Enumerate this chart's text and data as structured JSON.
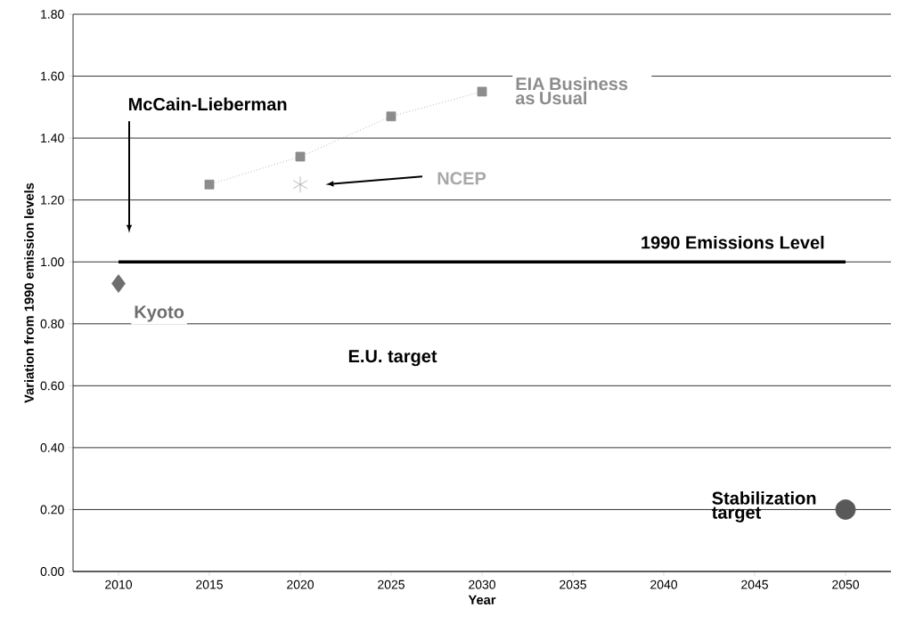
{
  "chart_data": {
    "type": "scatter",
    "xlabel": "Year",
    "ylabel": "Variation from 1990 emission levels",
    "xlim": [
      2007.5,
      2052.5
    ],
    "xticks": [
      2010,
      2015,
      2020,
      2025,
      2030,
      2035,
      2040,
      2045,
      2050
    ],
    "ylim": [
      0,
      1.8
    ],
    "yticks": [
      {
        "value": 0,
        "label": "0.00"
      },
      {
        "value": 0.2,
        "label": "0.20"
      },
      {
        "value": 0.4,
        "label": "0.40"
      },
      {
        "value": 0.6,
        "label": "0.60"
      },
      {
        "value": 0.8,
        "label": "0.80"
      },
      {
        "value": 1.0,
        "label": "1.00"
      },
      {
        "value": 1.2,
        "label": "1.20"
      },
      {
        "value": 1.4,
        "label": "1.40"
      },
      {
        "value": 1.6,
        "label": "1.60"
      },
      {
        "value": 1.8,
        "label": "1.80"
      }
    ],
    "grid": "y",
    "series": [
      {
        "name": "EIA Business as Usual",
        "type": "line",
        "marker": "square",
        "line_style": "dotted",
        "color": "#8c8c8c",
        "x": [
          2015,
          2020,
          2025,
          2030
        ],
        "values": [
          1.25,
          1.34,
          1.47,
          1.55
        ]
      },
      {
        "name": "NCEP",
        "marker": "cross",
        "color": "#a8a8a8",
        "x": [
          2020
        ],
        "values": [
          1.25
        ]
      },
      {
        "name": "1990 Emissions Level",
        "type": "line",
        "marker": "none",
        "line_style": "solid",
        "color": "#000000",
        "x": [
          2010,
          2050
        ],
        "values": [
          1.0,
          1.0
        ]
      },
      {
        "name": "Kyoto",
        "marker": "diamond",
        "color": "#6e6e6e",
        "x": [
          2010
        ],
        "values": [
          0.93
        ]
      },
      {
        "name": "Stabilization target",
        "marker": "circle",
        "color": "#595959",
        "x": [
          2050
        ],
        "values": [
          0.2
        ]
      }
    ],
    "annotations": [
      "McCain-Lieberman",
      "E.U. target"
    ]
  }
}
